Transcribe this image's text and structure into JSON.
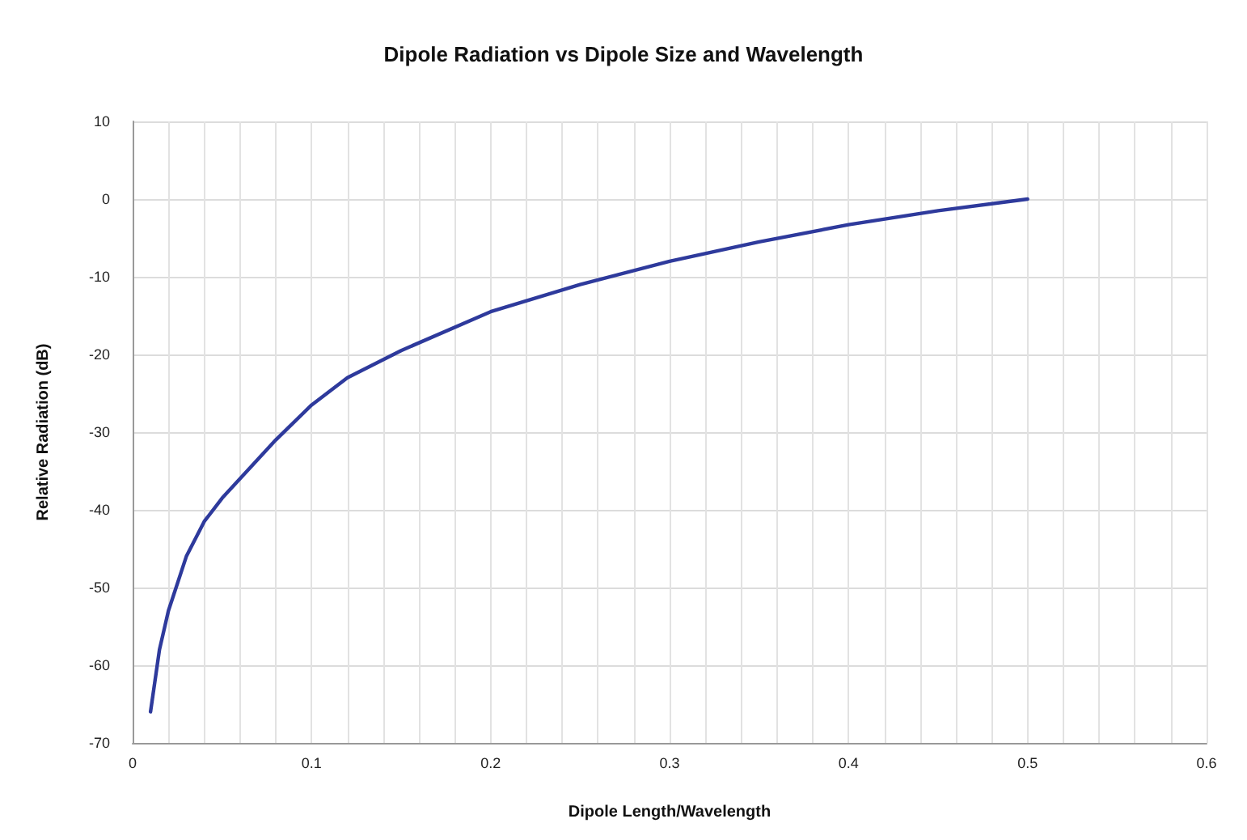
{
  "chart_data": {
    "type": "line",
    "title": "Dipole Radiation vs Dipole Size and Wavelength",
    "xlabel": "Dipole Length/Wavelength",
    "ylabel": "Relative Radiation (dB)",
    "series": [
      {
        "color": "#2e3a9c",
        "x": [
          0.01,
          0.015,
          0.02,
          0.03,
          0.04,
          0.05,
          0.06,
          0.08,
          0.1,
          0.12,
          0.15,
          0.2,
          0.25,
          0.3,
          0.35,
          0.4,
          0.45,
          0.5
        ],
        "values": [
          -66,
          -58,
          -53,
          -46,
          -41.5,
          -38.5,
          -36,
          -31,
          -26.5,
          -23,
          -19.5,
          -14.5,
          -11,
          -8,
          -5.5,
          -3.3,
          -1.5,
          0
        ]
      }
    ],
    "xlim": [
      0,
      0.6
    ],
    "xticks": [
      0,
      {
        "value": 0.02,
        "label": null
      },
      {
        "value": 0.04,
        "label": null
      },
      {
        "value": 0.06,
        "label": null
      },
      {
        "value": 0.08,
        "label": null
      },
      0.1,
      {
        "value": 0.12,
        "label": null
      },
      {
        "value": 0.14,
        "label": null
      },
      {
        "value": 0.16,
        "label": null
      },
      {
        "value": 0.18,
        "label": null
      },
      0.2,
      {
        "value": 0.22,
        "label": null
      },
      {
        "value": 0.24,
        "label": null
      },
      {
        "value": 0.26,
        "label": null
      },
      {
        "value": 0.28,
        "label": null
      },
      0.3,
      {
        "value": 0.32,
        "label": null
      },
      {
        "value": 0.34,
        "label": null
      },
      {
        "value": 0.36,
        "label": null
      },
      {
        "value": 0.38,
        "label": null
      },
      0.4,
      {
        "value": 0.42,
        "label": null
      },
      {
        "value": 0.44,
        "label": null
      },
      {
        "value": 0.46,
        "label": null
      },
      {
        "value": 0.48,
        "label": null
      },
      0.5,
      {
        "value": 0.52,
        "label": null
      },
      {
        "value": 0.54,
        "label": null
      },
      {
        "value": 0.56,
        "label": null
      },
      {
        "value": 0.58,
        "label": null
      },
      0.6
    ],
    "ylim": [
      -70,
      10
    ],
    "yticks": [
      -70,
      -60,
      -50,
      -40,
      -30,
      -20,
      -10,
      0,
      10
    ],
    "grid": true,
    "marker": "none",
    "line_style": "solid"
  }
}
